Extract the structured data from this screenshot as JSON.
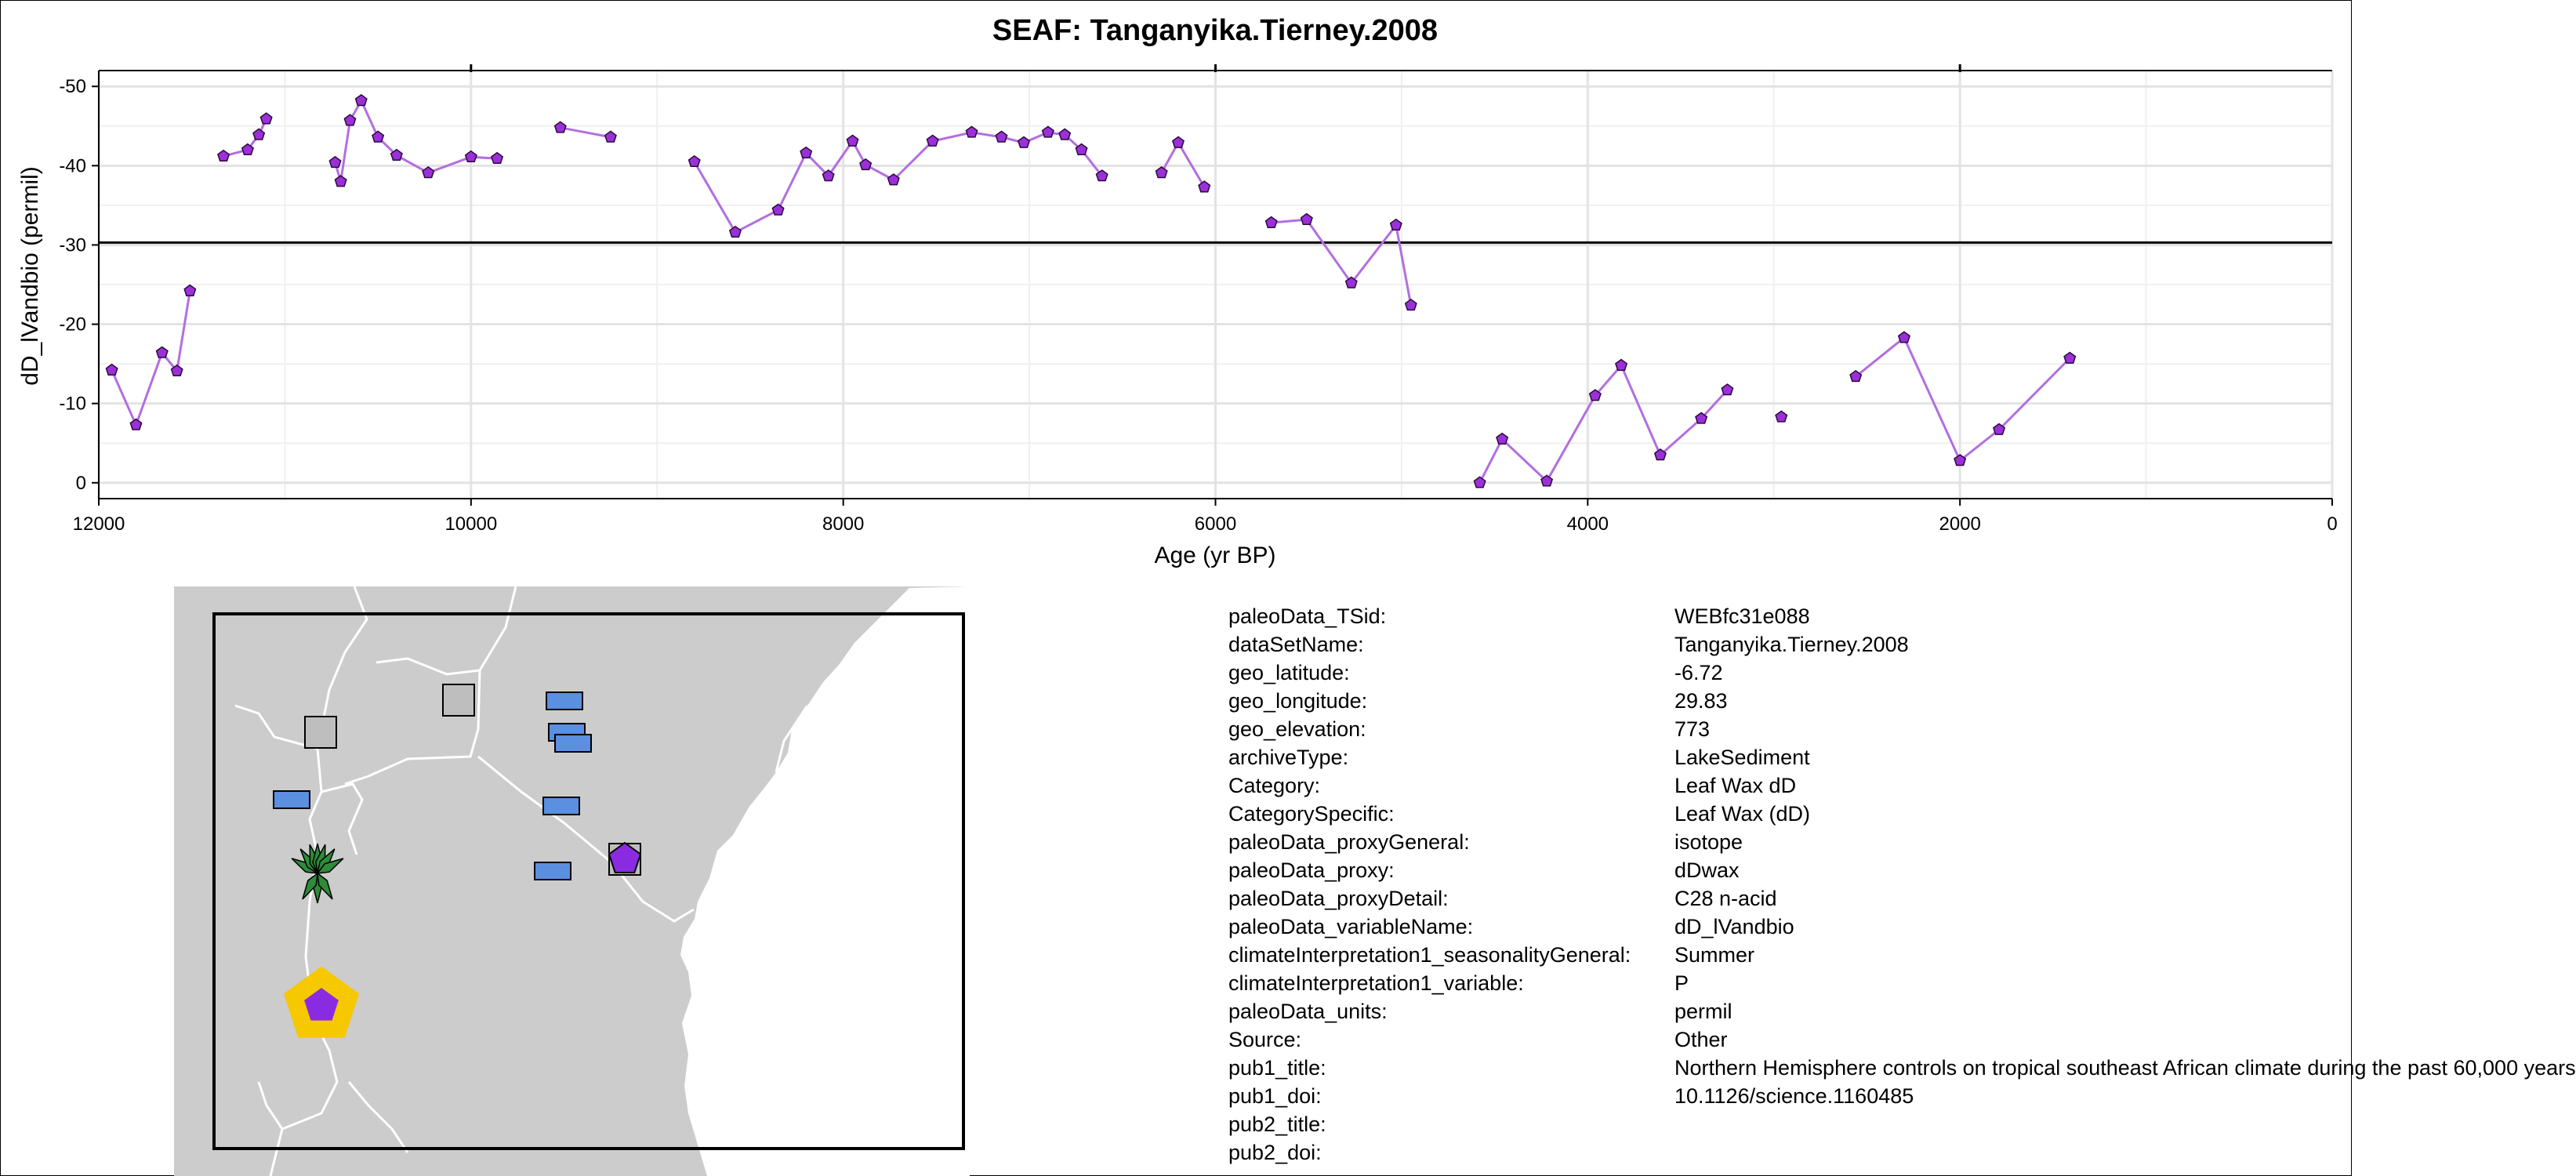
{
  "chart_data": {
    "type": "line",
    "title": "SEAF: Tanganyika.Tierney.2008",
    "xlabel": "Age (yr BP)",
    "ylabel": "dD_lVandbio (permil)",
    "xlim": [
      12000,
      0
    ],
    "ylim": [
      2,
      -52
    ],
    "y_reversed": true,
    "x_reversed": true,
    "x_ticks": [
      12000,
      10000,
      8000,
      6000,
      4000,
      2000,
      0
    ],
    "x_tick_labels": [
      "12000",
      "10000",
      "8000",
      "6000",
      "4000",
      "2000",
      "0"
    ],
    "y_ticks": [
      -50,
      -40,
      -30,
      -20,
      -10,
      0
    ],
    "y_tick_labels": [
      "-50",
      "-40",
      "-30",
      "-20",
      "-10",
      "0"
    ],
    "grid": true,
    "reference_line_y": -30.3,
    "series_color": "#9b30d9",
    "line_color": "#b36ee0",
    "marker": "pentagon",
    "segments": [
      [
        [
          11930,
          -14.2
        ],
        [
          11800,
          -7.3
        ],
        [
          11660,
          -16.4
        ],
        [
          11580,
          -14.1
        ],
        [
          11510,
          -24.2
        ]
      ],
      [
        [
          11330,
          -41.2
        ],
        [
          11200,
          -42.0
        ],
        [
          11140,
          -43.9
        ],
        [
          11100,
          -45.9
        ]
      ],
      [
        [
          10730,
          -40.4
        ],
        [
          10700,
          -38.0
        ],
        [
          10650,
          -45.7
        ],
        [
          10590,
          -48.2
        ],
        [
          10500,
          -43.6
        ],
        [
          10400,
          -41.3
        ],
        [
          10230,
          -39.1
        ],
        [
          10000,
          -41.1
        ],
        [
          9860,
          -40.9
        ]
      ],
      [
        [
          9520,
          -44.8
        ],
        [
          9250,
          -43.6
        ]
      ],
      [
        [
          8800,
          -40.5
        ],
        [
          8580,
          -31.6
        ],
        [
          8350,
          -34.4
        ],
        [
          8200,
          -41.6
        ],
        [
          8080,
          -38.7
        ],
        [
          7950,
          -43.1
        ],
        [
          7880,
          -40.1
        ],
        [
          7730,
          -38.2
        ],
        [
          7520,
          -43.1
        ],
        [
          7310,
          -44.2
        ],
        [
          7150,
          -43.6
        ],
        [
          7030,
          -42.9
        ],
        [
          6900,
          -44.2
        ],
        [
          6810,
          -43.9
        ],
        [
          6720,
          -42.0
        ],
        [
          6610,
          -38.7
        ]
      ],
      [
        [
          6290,
          -39.1
        ],
        [
          6200,
          -42.9
        ],
        [
          6060,
          -37.3
        ]
      ],
      [
        [
          5700,
          -32.8
        ],
        [
          5510,
          -33.2
        ],
        [
          5270,
          -25.2
        ],
        [
          5030,
          -32.5
        ],
        [
          4950,
          -22.4
        ]
      ],
      [
        [
          4580,
          0.0
        ],
        [
          4460,
          -5.5
        ],
        [
          4220,
          -0.2
        ],
        [
          3960,
          -11.0
        ],
        [
          3820,
          -14.8
        ],
        [
          3610,
          -3.5
        ],
        [
          3390,
          -8.1
        ],
        [
          3250,
          -11.7
        ]
      ],
      [
        [
          2960,
          -8.3
        ]
      ],
      [
        [
          2560,
          -13.4
        ],
        [
          2300,
          -18.3
        ],
        [
          2000,
          -2.8
        ],
        [
          1790,
          -6.7
        ],
        [
          1410,
          -15.7
        ]
      ]
    ]
  },
  "map": {
    "land_color": "#cccccc",
    "border_color": "#ffffff",
    "markers": [
      {
        "shape": "square",
        "color": "#bebebe"
      },
      {
        "shape": "square",
        "color": "#bebebe"
      },
      {
        "shape": "square",
        "color": "#bebebe"
      },
      {
        "shape": "rect",
        "color": "#5b8fe0"
      },
      {
        "shape": "rect",
        "color": "#5b8fe0"
      },
      {
        "shape": "rect",
        "color": "#5b8fe0"
      },
      {
        "shape": "rect",
        "color": "#5b8fe0"
      },
      {
        "shape": "rect",
        "color": "#5b8fe0"
      },
      {
        "shape": "rect",
        "color": "#5b8fe0"
      },
      {
        "shape": "pentagon",
        "color": "#8a2be2"
      },
      {
        "shape": "leaf",
        "color": "#2e8b3a"
      },
      {
        "shape": "highlight-pentagon",
        "color": "#8a2be2",
        "ring": "#f5c800"
      }
    ]
  },
  "metadata": [
    {
      "key": "paleoData_TSid:",
      "value": "WEBfc31e088"
    },
    {
      "key": "dataSetName:",
      "value": "Tanganyika.Tierney.2008"
    },
    {
      "key": "geo_latitude:",
      "value": "-6.72"
    },
    {
      "key": "geo_longitude:",
      "value": "29.83"
    },
    {
      "key": "geo_elevation:",
      "value": "773"
    },
    {
      "key": "archiveType:",
      "value": "LakeSediment"
    },
    {
      "key": "Category:",
      "value": "Leaf Wax dD"
    },
    {
      "key": "CategorySpecific:",
      "value": "Leaf Wax (dD)"
    },
    {
      "key": "paleoData_proxyGeneral:",
      "value": "isotope"
    },
    {
      "key": "paleoData_proxy:",
      "value": "dDwax"
    },
    {
      "key": "paleoData_proxyDetail:",
      "value": "C28 n-acid"
    },
    {
      "key": "paleoData_variableName:",
      "value": "dD_lVandbio"
    },
    {
      "key": "climateInterpretation1_seasonalityGeneral:",
      "value": "Summer"
    },
    {
      "key": "climateInterpretation1_variable:",
      "value": "P"
    },
    {
      "key": "paleoData_units:",
      "value": "permil"
    },
    {
      "key": "Source:",
      "value": "Other"
    },
    {
      "key": "pub1_title:",
      "value": "Northern Hemisphere controls on tropical southeast African climate during the past 60,000 years"
    },
    {
      "key": "pub1_doi:",
      "value": "10.1126/science.1160485"
    },
    {
      "key": "pub2_title:",
      "value": ""
    },
    {
      "key": "pub2_doi:",
      "value": ""
    }
  ]
}
